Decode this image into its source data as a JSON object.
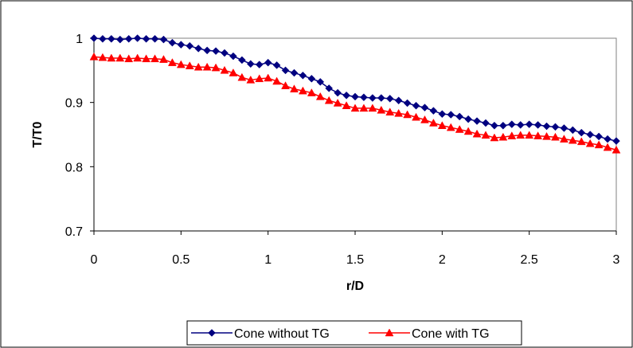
{
  "chart_data": {
    "type": "line",
    "title": "",
    "xlabel": "r/D",
    "ylabel": "T/T0",
    "xlim": [
      0,
      3
    ],
    "ylim": [
      0.7,
      1.0
    ],
    "x_ticks": [
      "0",
      "0.5",
      "1",
      "1.5",
      "2",
      "2.5",
      "3"
    ],
    "y_ticks": [
      "0.7",
      "0.8",
      "0.9",
      "1"
    ],
    "grid": false,
    "legend_position": "bottom",
    "plot_background": "#ffffff",
    "x": [
      0,
      0.05,
      0.1,
      0.15,
      0.2,
      0.25,
      0.3,
      0.35,
      0.4,
      0.45,
      0.5,
      0.55,
      0.6,
      0.65,
      0.7,
      0.75,
      0.8,
      0.85,
      0.9,
      0.95,
      1.0,
      1.05,
      1.1,
      1.15,
      1.2,
      1.25,
      1.3,
      1.35,
      1.4,
      1.45,
      1.5,
      1.55,
      1.6,
      1.65,
      1.7,
      1.75,
      1.8,
      1.85,
      1.9,
      1.95,
      2.0,
      2.05,
      2.1,
      2.15,
      2.2,
      2.25,
      2.3,
      2.35,
      2.4,
      2.45,
      2.5,
      2.55,
      2.6,
      2.65,
      2.7,
      2.75,
      2.8,
      2.85,
      2.9,
      2.95,
      3.0
    ],
    "series": [
      {
        "name": "Cone without TG",
        "color": "#000080",
        "marker": "diamond",
        "values": [
          1.0,
          0.999,
          0.999,
          0.998,
          0.999,
          1.0,
          0.999,
          0.999,
          0.998,
          0.993,
          0.99,
          0.988,
          0.984,
          0.981,
          0.98,
          0.977,
          0.972,
          0.966,
          0.96,
          0.959,
          0.962,
          0.958,
          0.95,
          0.946,
          0.942,
          0.937,
          0.932,
          0.922,
          0.915,
          0.911,
          0.909,
          0.908,
          0.907,
          0.907,
          0.906,
          0.903,
          0.899,
          0.895,
          0.892,
          0.887,
          0.882,
          0.881,
          0.878,
          0.874,
          0.871,
          0.868,
          0.864,
          0.864,
          0.866,
          0.865,
          0.866,
          0.865,
          0.863,
          0.862,
          0.86,
          0.857,
          0.853,
          0.85,
          0.847,
          0.843,
          0.84
        ]
      },
      {
        "name": "Cone with TG",
        "color": "#ff0000",
        "marker": "triangle",
        "values": [
          0.971,
          0.97,
          0.969,
          0.969,
          0.968,
          0.969,
          0.968,
          0.968,
          0.967,
          0.962,
          0.959,
          0.957,
          0.955,
          0.955,
          0.954,
          0.95,
          0.946,
          0.939,
          0.935,
          0.937,
          0.938,
          0.933,
          0.926,
          0.921,
          0.918,
          0.915,
          0.909,
          0.903,
          0.899,
          0.895,
          0.891,
          0.891,
          0.891,
          0.888,
          0.885,
          0.883,
          0.881,
          0.877,
          0.873,
          0.868,
          0.864,
          0.861,
          0.858,
          0.855,
          0.851,
          0.849,
          0.845,
          0.846,
          0.848,
          0.849,
          0.849,
          0.848,
          0.847,
          0.846,
          0.843,
          0.841,
          0.839,
          0.836,
          0.834,
          0.83,
          0.826
        ]
      }
    ]
  }
}
